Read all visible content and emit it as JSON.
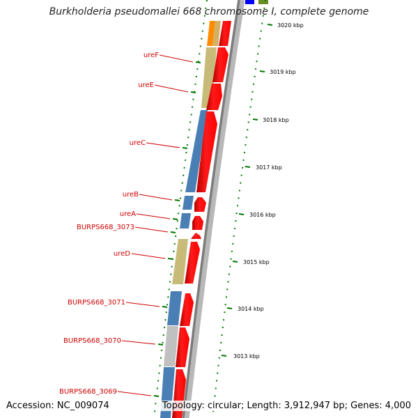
{
  "title": "Burkholderia pseudomallei 668 chromosome I, complete genome",
  "accession": "Accession: NC_009074",
  "summary": "Topology: circular; Length: 3,912,947 bp; Genes: 4,000",
  "gene_labels": [
    {
      "id": "ureF",
      "text": "ureF"
    },
    {
      "id": "ureE",
      "text": "ureE"
    },
    {
      "id": "ureC",
      "text": "ureC"
    },
    {
      "id": "ureB",
      "text": "ureB"
    },
    {
      "id": "ureA",
      "text": "ureA"
    },
    {
      "id": "burps3073",
      "text": "BURPS668_3073"
    },
    {
      "id": "ureD",
      "text": "ureD"
    },
    {
      "id": "burps3071",
      "text": "BURPS668_3071"
    },
    {
      "id": "burps3070",
      "text": "BURPS668_3070"
    },
    {
      "id": "burps3069",
      "text": "BURPS668_3069"
    }
  ],
  "ticks": [
    "3020 kbp",
    "3019 kbp",
    "3018 kbp",
    "3017 kbp",
    "3016 kbp",
    "3015 kbp",
    "3014 kbp",
    "3013 kbp"
  ],
  "colors": {
    "cds_red": "#ff0000",
    "steel_blue": "#4a7fb5",
    "khaki": "#c8bb7a",
    "gray": "#c0c0c0",
    "orange": "#ff8c00",
    "label_red": "#cc0000",
    "tick_green": "#007700",
    "backbone": "#808080"
  }
}
